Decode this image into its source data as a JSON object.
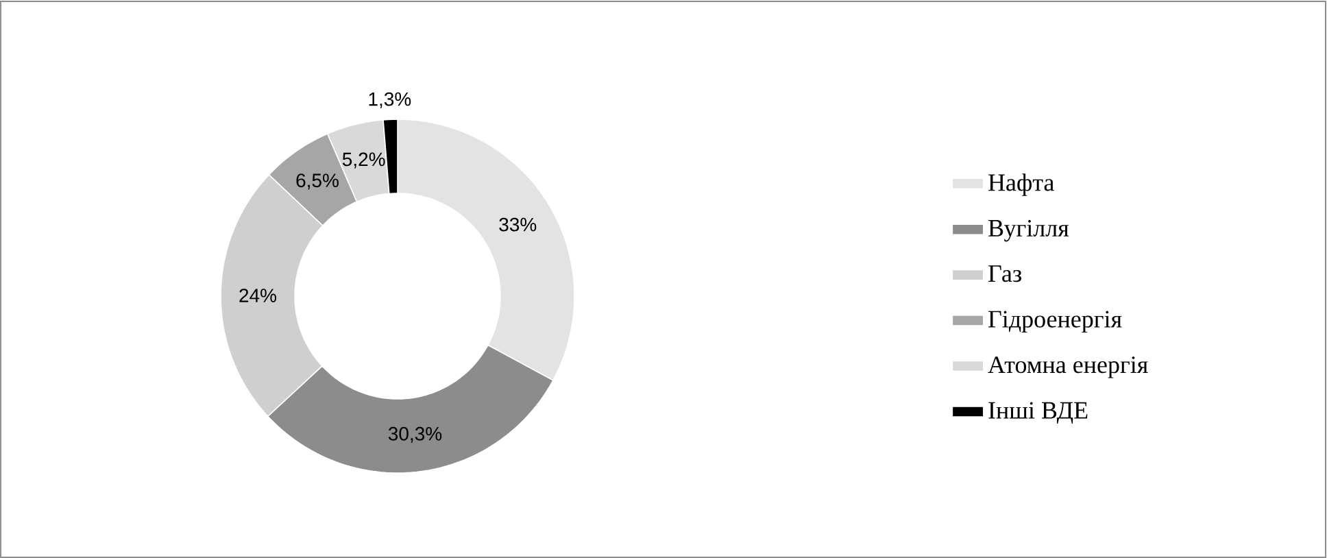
{
  "chart_data": {
    "type": "donut",
    "categories": [
      "Нафта",
      "Вугілля",
      "Газ",
      "Гідроенергія",
      "Атомна енергія",
      "Інші ВДЕ"
    ],
    "values": [
      33,
      30.3,
      24,
      6.5,
      5.2,
      1.3
    ],
    "value_labels": [
      "33%",
      "30,3%",
      "24%",
      "6,5%",
      "5,2%",
      "1,3%"
    ],
    "colors": [
      "#e3e3e3",
      "#8c8c8c",
      "#cfcfcf",
      "#a6a6a6",
      "#d9d9d9",
      "#000000"
    ],
    "legend": "right"
  }
}
